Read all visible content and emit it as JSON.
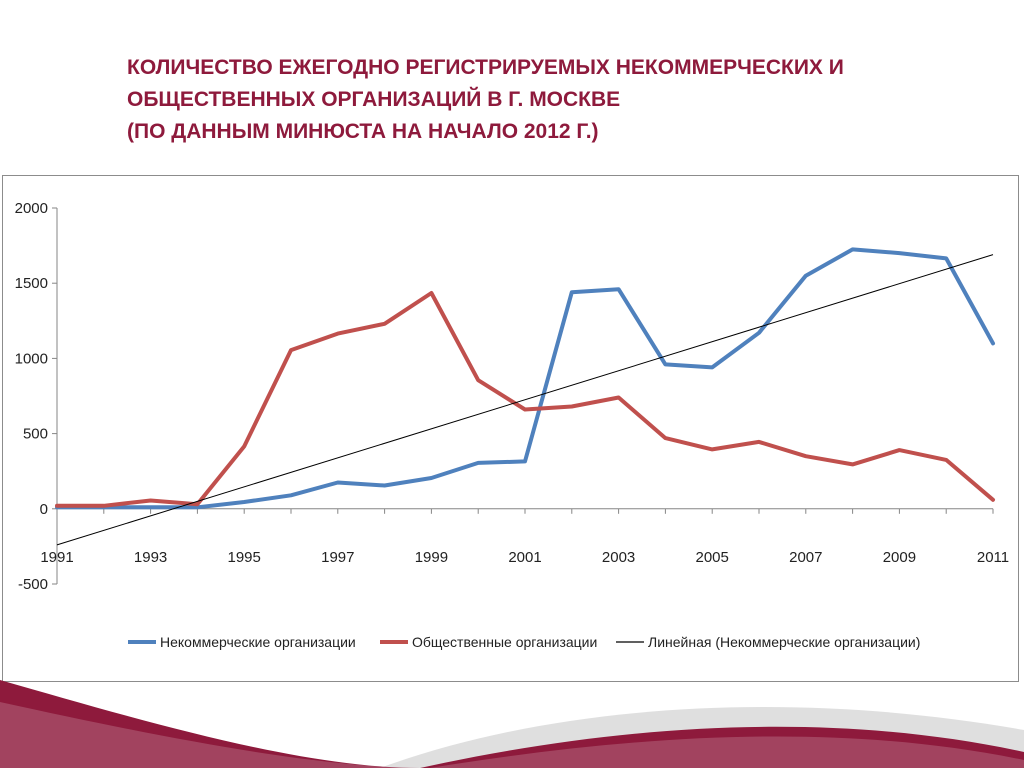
{
  "title": {
    "line1": "КОЛИЧЕСТВО ЕЖЕГОДНО РЕГИСТРИРУЕМЫХ НЕКОММЕРЧЕСКИХ И",
    "line2": "ОБЩЕСТВЕННЫХ ОРГАНИЗАЦИЙ В Г. МОСКВЕ",
    "line3": "(ПО ДАННЫМ МИНЮСТА НА НАЧАЛО 2012 Г.)"
  },
  "colors": {
    "title": "#8e1a3c",
    "series_nko": "#4f81bd",
    "series_public": "#c0504d",
    "trend": "#000000",
    "band_dark": "#8e1a3c",
    "band_light": "#c9c9c9"
  },
  "chart_data": {
    "type": "line",
    "x": [
      1991,
      1992,
      1993,
      1994,
      1995,
      1996,
      1997,
      1998,
      1999,
      2000,
      2001,
      2002,
      2003,
      2004,
      2005,
      2006,
      2007,
      2008,
      2009,
      2010,
      2011
    ],
    "x_tick_labels": [
      "1991",
      "1993",
      "1995",
      "1997",
      "1999",
      "2001",
      "2003",
      "2005",
      "2007",
      "2009",
      "2011"
    ],
    "y_tick_labels": [
      "2000",
      "1500",
      "1000",
      "500",
      "0",
      "-500"
    ],
    "ylim": [
      -500,
      2000
    ],
    "xlim": [
      1991,
      2011
    ],
    "grid": false,
    "legend_position": "bottom",
    "series": [
      {
        "name": "Некоммерческие организации",
        "color": "#4f81bd",
        "values": [
          10,
          10,
          10,
          10,
          45,
          90,
          175,
          155,
          205,
          305,
          315,
          1440,
          1460,
          960,
          940,
          1170,
          1550,
          1725,
          1700,
          1665,
          1100
        ]
      },
      {
        "name": "Общественные организации",
        "color": "#c0504d",
        "values": [
          20,
          20,
          55,
          30,
          415,
          1055,
          1165,
          1230,
          1435,
          855,
          660,
          680,
          740,
          470,
          395,
          445,
          350,
          295,
          390,
          325,
          60
        ]
      }
    ],
    "trendline": {
      "name": "Линейная (Некоммерческие организации)",
      "color": "#000000",
      "start": [
        1991,
        -240
      ],
      "end": [
        2011,
        1690
      ]
    }
  }
}
